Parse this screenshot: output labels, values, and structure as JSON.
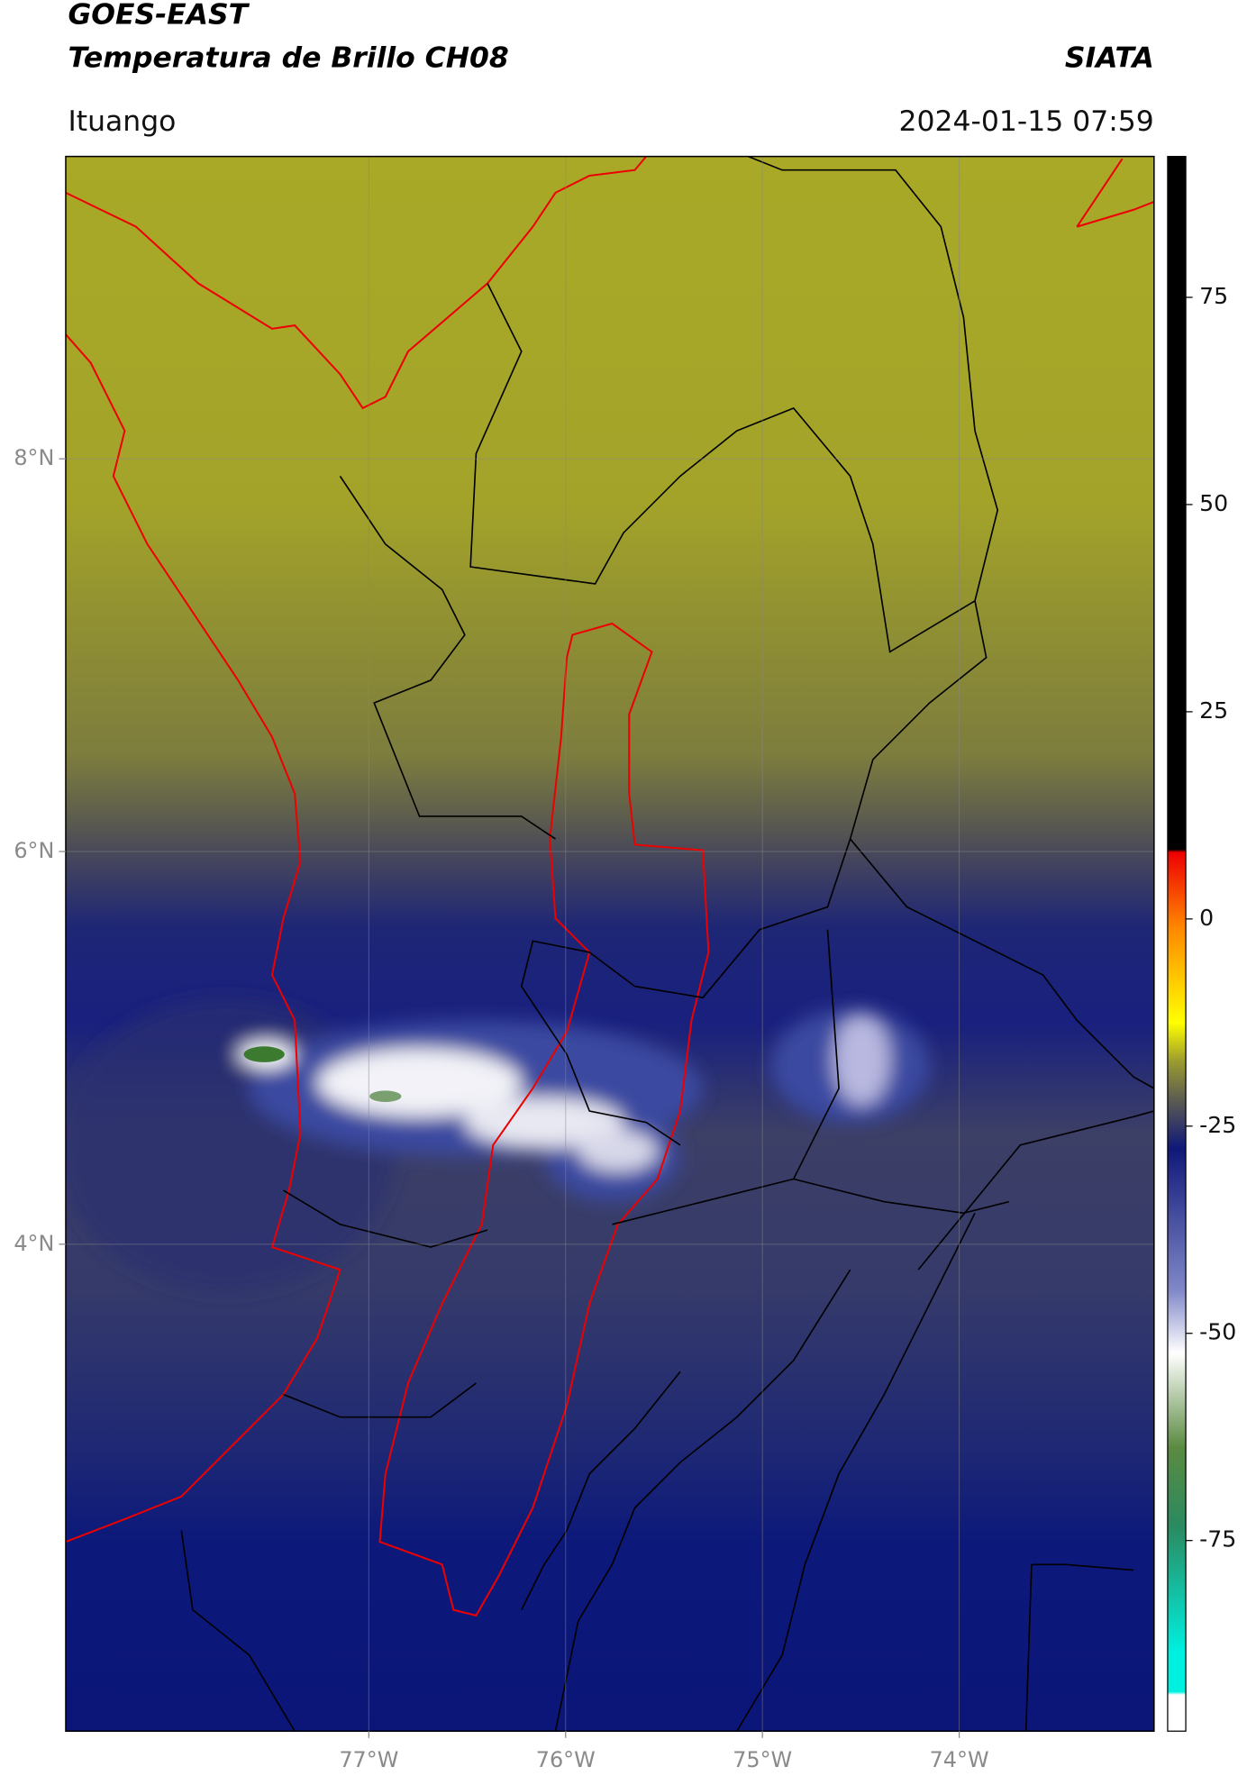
{
  "chart_data": {
    "type": "map",
    "title": "GOES-EAST",
    "subtitle": "Temperatura de Brillo CH08",
    "source": "SIATA",
    "location": "Ituango",
    "datetime": "2024-01-15 07:59",
    "xlim": [
      -78.54,
      -73.01
    ],
    "ylim": [
      1.52,
      9.54
    ],
    "xticks": [
      {
        "value": -77,
        "label": "77°W"
      },
      {
        "value": -76,
        "label": "76°W"
      },
      {
        "value": -75,
        "label": "75°W"
      },
      {
        "value": -74,
        "label": "74°W"
      }
    ],
    "yticks": [
      {
        "value": 8,
        "label": "8°N"
      },
      {
        "value": 6,
        "label": "6°N"
      },
      {
        "value": 4,
        "label": "4°N"
      }
    ],
    "grid": true,
    "colorbar_lim": [
      -98,
      92
    ],
    "colorbar_ticks": [
      75,
      50,
      25,
      0,
      -25,
      -50,
      -75
    ]
  }
}
